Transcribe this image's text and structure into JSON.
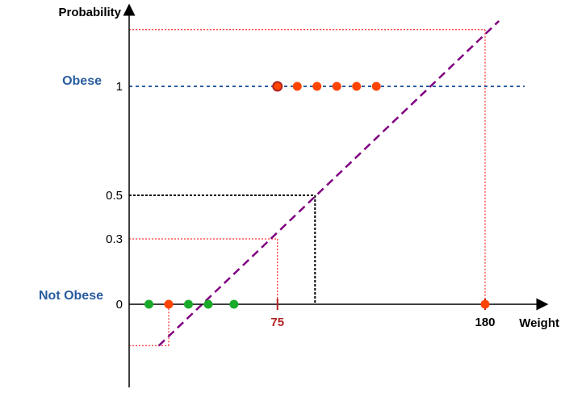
{
  "chart_data": {
    "type": "scatter",
    "title": "",
    "xlabel": "Weight",
    "ylabel": "Probability",
    "category_labels": {
      "high": "Obese",
      "low": "Not Obese"
    },
    "y_ticks": [
      {
        "value": 1,
        "label": "1"
      },
      {
        "value": 0.5,
        "label": "0.5"
      },
      {
        "value": 0.3,
        "label": "0.3"
      },
      {
        "value": 0,
        "label": "0"
      }
    ],
    "x_ticks": [
      {
        "value": 75,
        "label": "75"
      },
      {
        "value": 180,
        "label": "180"
      }
    ],
    "obese_points": {
      "color": "#ff4500",
      "x": [
        75,
        85,
        95,
        105,
        115,
        125
      ],
      "y": [
        1,
        1,
        1,
        1,
        1,
        1
      ],
      "highlight_index": 0
    },
    "not_obese_points": [
      {
        "x": 10,
        "y": 0,
        "color": "#1aaa2a"
      },
      {
        "x": 20,
        "y": 0,
        "color": "#ff4500"
      },
      {
        "x": 30,
        "y": 0,
        "color": "#1aaa2a"
      },
      {
        "x": 40,
        "y": 0,
        "color": "#1aaa2a"
      },
      {
        "x": 53,
        "y": 0,
        "color": "#1aaa2a"
      }
    ],
    "query_point": {
      "x": 180,
      "y": 0,
      "color": "#ff4500"
    },
    "regression_line": {
      "x": [
        15,
        187
      ],
      "y": [
        -0.19,
        1.3
      ],
      "color": "#800080"
    },
    "threshold_line": {
      "y": 1,
      "color": "#2a5d9f"
    },
    "guides": [
      {
        "x": 20,
        "y": -0.19,
        "color": "#ff0000"
      },
      {
        "x": 75,
        "y": 0.3,
        "color": "#ff0000"
      },
      {
        "x": 94,
        "y": 0.5,
        "color": "#000000"
      },
      {
        "x": 180,
        "y": 1.26,
        "color": "#ff0000"
      }
    ],
    "xlim": [
      0,
      195
    ],
    "ylim": [
      -0.38,
      1.37
    ],
    "grid": false,
    "colors": {
      "category_text": "#2a5d9f",
      "tick_highlight": "#b22222",
      "axis": "#000000"
    }
  }
}
